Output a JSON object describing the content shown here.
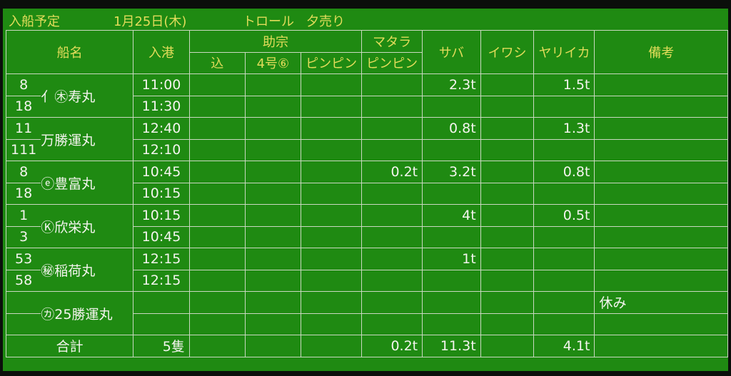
{
  "header": {
    "title": "入船予定",
    "date": "1月25日(木)",
    "type": "トロール",
    "session": "夕売り"
  },
  "columns": {
    "ship": "船名",
    "arrival": "入港",
    "sukeso": "助宗",
    "matara": "マタラ",
    "komi": "込",
    "no4": "4号⑥",
    "pinpin1": "ピンピン",
    "pinpin2": "ピンピン",
    "saba": "サバ",
    "iwashi": "イワシ",
    "yariika": "ヤリイカ",
    "biko": "備考"
  },
  "ships": [
    {
      "nums": [
        "8",
        "18"
      ],
      "name": "⺅㊍寿丸",
      "times": [
        "11:00",
        "11:30"
      ],
      "komi": "",
      "no4": "",
      "pinpin": "",
      "matara": "",
      "saba": "2.3t",
      "iwashi": "",
      "yariika": "1.5t",
      "biko": ""
    },
    {
      "nums": [
        "11",
        "111"
      ],
      "name": "万勝運丸",
      "times": [
        "12:40",
        "12:10"
      ],
      "komi": "",
      "no4": "",
      "pinpin": "",
      "matara": "",
      "saba": "0.8t",
      "iwashi": "",
      "yariika": "1.3t",
      "biko": ""
    },
    {
      "nums": [
        "8",
        "18"
      ],
      "name": "ⓔ豊富丸",
      "times": [
        "10:45",
        "10:15"
      ],
      "komi": "",
      "no4": "",
      "pinpin": "",
      "matara": "0.2t",
      "saba": "3.2t",
      "iwashi": "",
      "yariika": "0.8t",
      "biko": ""
    },
    {
      "nums": [
        "1",
        "3"
      ],
      "name": "Ⓚ欣栄丸",
      "times": [
        "10:15",
        "10:45"
      ],
      "komi": "",
      "no4": "",
      "pinpin": "",
      "matara": "",
      "saba": "4t",
      "iwashi": "",
      "yariika": "0.5t",
      "biko": ""
    },
    {
      "nums": [
        "53",
        "58"
      ],
      "name": "㊙稲荷丸",
      "times": [
        "12:15",
        "12:15"
      ],
      "komi": "",
      "no4": "",
      "pinpin": "",
      "matara": "",
      "saba": "1t",
      "iwashi": "",
      "yariika": "",
      "biko": ""
    },
    {
      "nums": [
        "",
        ""
      ],
      "name": "㋕25勝運丸",
      "times": [
        "",
        ""
      ],
      "komi": "",
      "no4": "",
      "pinpin": "",
      "matara": "",
      "saba": "",
      "iwashi": "",
      "yariika": "",
      "biko": "休み"
    }
  ],
  "total": {
    "label": "合計",
    "ships": "5隻",
    "matara": "0.2t",
    "saba": "11.3t",
    "yariika": "4.1t"
  }
}
